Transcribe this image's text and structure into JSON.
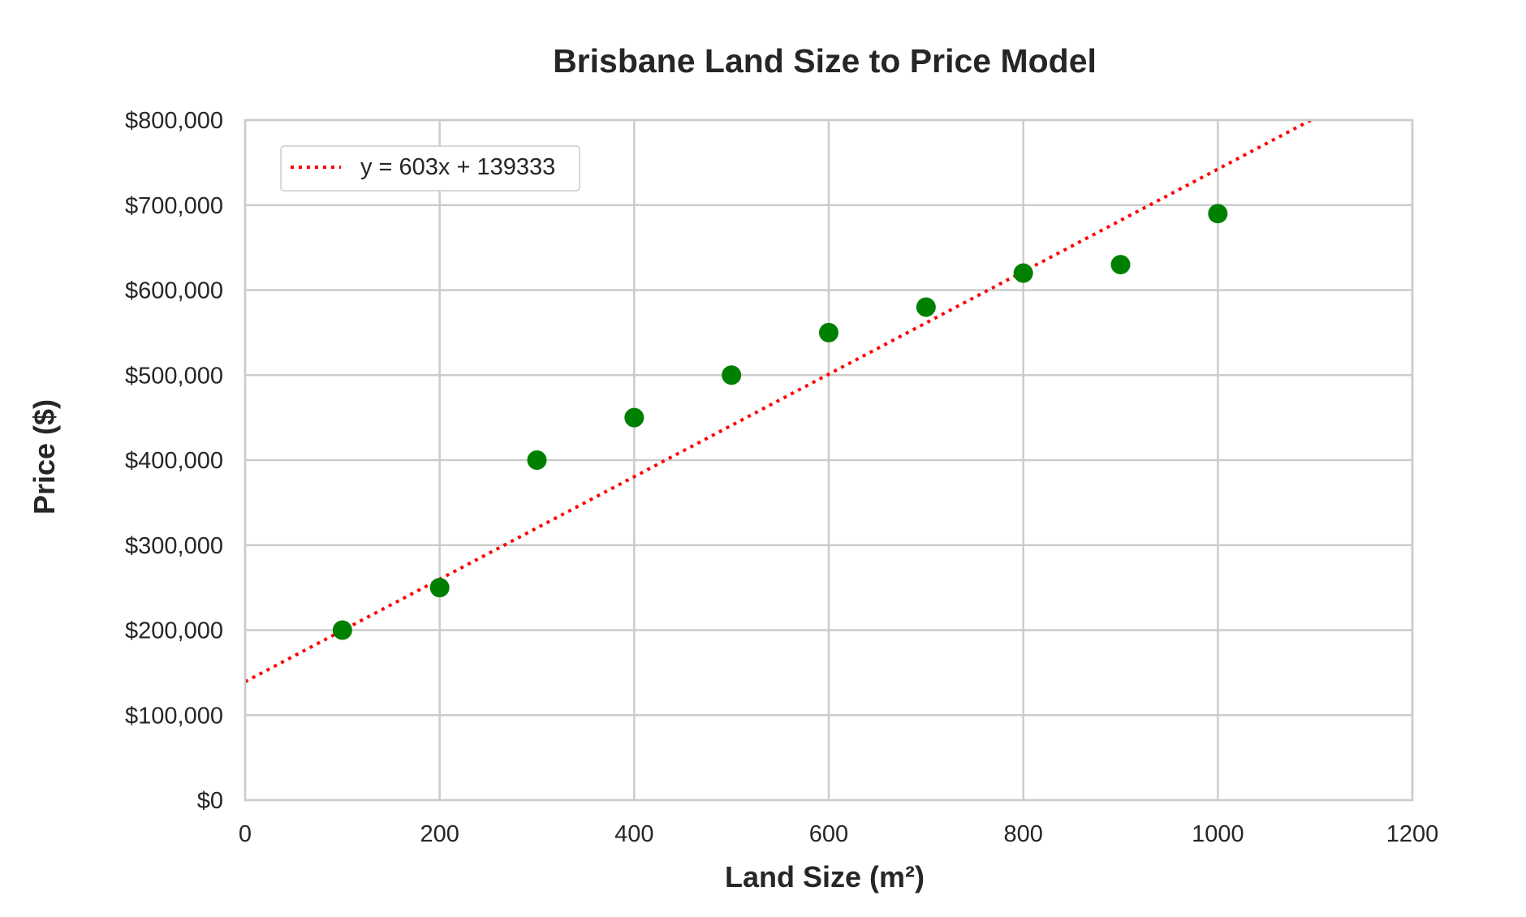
{
  "chart_data": {
    "type": "scatter",
    "title": "Brisbane Land Size to Price Model",
    "xlabel": "Land Size (m²)",
    "ylabel": "Price ($)",
    "xlim": [
      0,
      1200
    ],
    "ylim": [
      0,
      800000
    ],
    "x_ticks": [
      "0",
      "200",
      "400",
      "600",
      "800",
      "1000",
      "1200"
    ],
    "y_ticks": [
      "$0",
      "$100,000",
      "$200,000",
      "$300,000",
      "$400,000",
      "$500,000",
      "$600,000",
      "$700,000",
      "$800,000"
    ],
    "grid": true,
    "legend_position": "top-left",
    "series": [
      {
        "kind": "scatter",
        "color": "#008000",
        "x": [
          100,
          200,
          300,
          400,
          500,
          600,
          700,
          800,
          900,
          1000
        ],
        "y": [
          200000,
          250000,
          400000,
          450000,
          500000,
          550000,
          580000,
          620000,
          630000,
          690000
        ]
      },
      {
        "kind": "line",
        "style": "dotted",
        "color": "#ff0000",
        "name": "y = 603x + 139333",
        "slope": 603,
        "intercept": 139333
      }
    ]
  }
}
